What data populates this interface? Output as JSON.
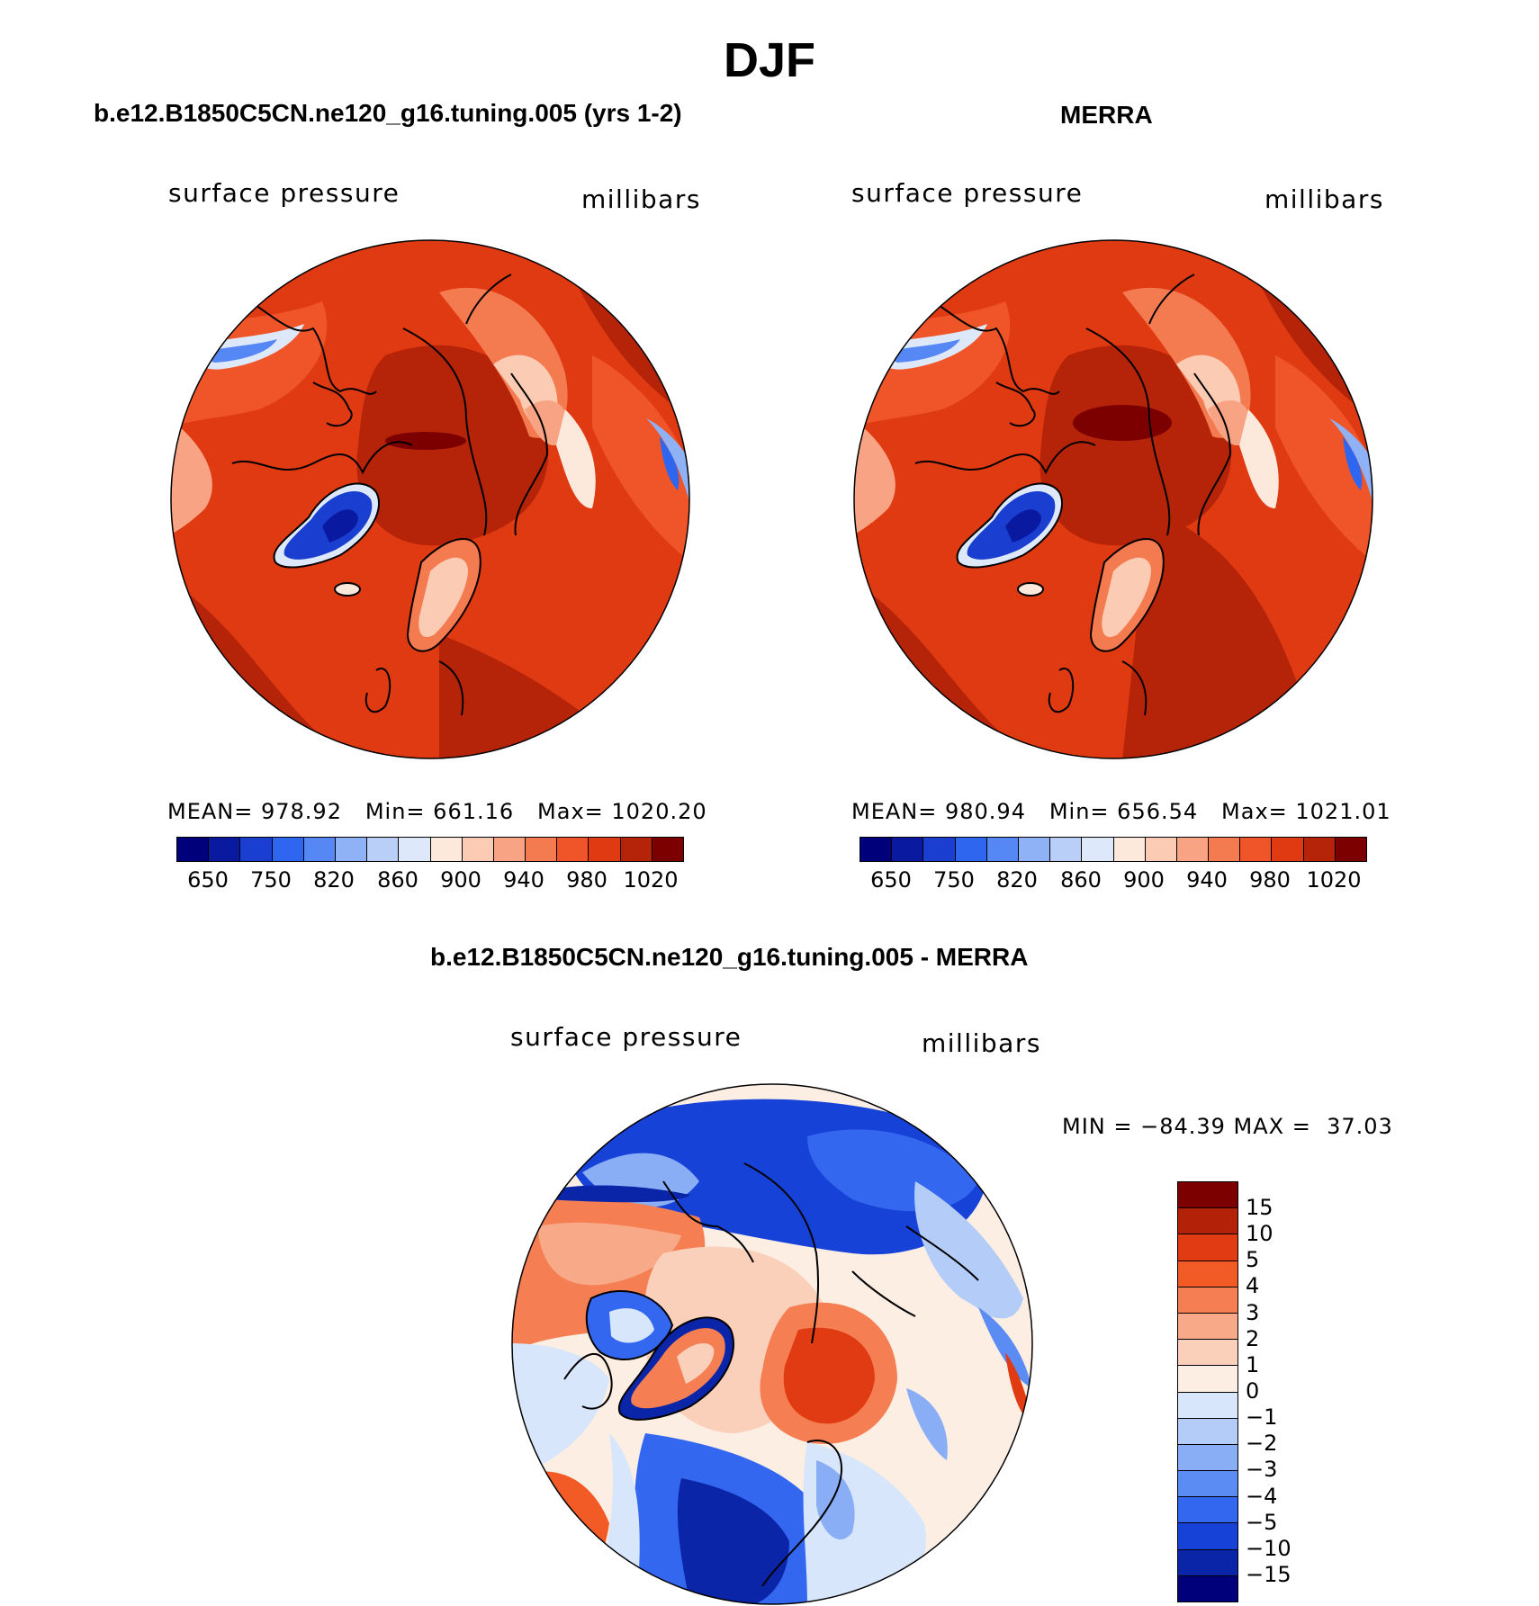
{
  "main_title": "DJF",
  "panels": [
    {
      "title": "b.e12.B1850C5CN.ne120_g16.tuning.005 (yrs 1-2)",
      "variable": "surface pressure",
      "units": "millibars",
      "stats": "MEAN= 978.92   Min= 661.16   Max= 1020.20",
      "colorbar_ticks": [
        "650",
        "750",
        "820",
        "860",
        "900",
        "940",
        "980",
        "1020"
      ]
    },
    {
      "title": "MERRA",
      "variable": "surface pressure",
      "units": "millibars",
      "stats": "MEAN= 980.94   Min= 656.54   Max= 1021.01",
      "colorbar_ticks": [
        "650",
        "750",
        "820",
        "860",
        "900",
        "940",
        "980",
        "1020"
      ]
    }
  ],
  "diff_panel": {
    "title": "b.e12.B1850C5CN.ne120_g16.tuning.005 - MERRA",
    "variable": "surface pressure",
    "units": "millibars",
    "stats": "MIN = −84.39 MAX =  37.03",
    "colorbar_ticks": [
      "15",
      "10",
      "5",
      "4",
      "3",
      "2",
      "1",
      "0",
      "−1",
      "−2",
      "−3",
      "−4",
      "−5",
      "−10",
      "−15"
    ]
  },
  "colors": {
    "field_scale": [
      "#00007a",
      "#0a1aa0",
      "#1a3fd0",
      "#2f66f0",
      "#5587f5",
      "#8fb2f7",
      "#b9cff7",
      "#dde9fa",
      "#fde9db",
      "#fbcbb3",
      "#f8a383",
      "#f47a50",
      "#ef5528",
      "#e03a12",
      "#b52409",
      "#7c0000"
    ],
    "diff_scale": [
      "#7c0000",
      "#b32109",
      "#e03b12",
      "#f25a26",
      "#f57f52",
      "#f7a988",
      "#fbd0bb",
      "#fdeee4",
      "#d7e6fb",
      "#b4cdf8",
      "#89aef5",
      "#5b8cf3",
      "#3467ef",
      "#1742d8",
      "#0a25a8",
      "#00007a"
    ]
  }
}
